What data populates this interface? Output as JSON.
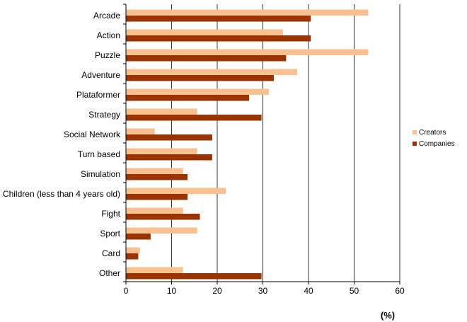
{
  "chart_data": {
    "type": "bar",
    "orientation": "horizontal",
    "categories": [
      "Arcade",
      "Action",
      "Puzzle",
      "Adventure",
      "Plataformer",
      "Strategy",
      "Social Network",
      "Turn based",
      "Simulation",
      "Children (less than 4 years old)",
      "Fight",
      "Sport",
      "Card",
      "Other"
    ],
    "series": [
      {
        "name": "Creators",
        "color": "#FAC090",
        "values": [
          53.1,
          34.4,
          53.1,
          37.5,
          31.3,
          15.6,
          6.3,
          15.6,
          12.5,
          21.9,
          12.5,
          15.6,
          3.1,
          12.5
        ]
      },
      {
        "name": "Companies",
        "color": "#993300",
        "values": [
          40.5,
          40.5,
          35.1,
          32.4,
          27.0,
          29.7,
          18.9,
          18.9,
          13.5,
          13.5,
          16.2,
          5.4,
          2.7,
          29.7
        ]
      }
    ],
    "xlim": [
      0,
      60
    ],
    "xticks": [
      0,
      10,
      20,
      30,
      40,
      50,
      60
    ],
    "xlabel": "(%)",
    "grid": "vertical",
    "legend_position": "right"
  }
}
